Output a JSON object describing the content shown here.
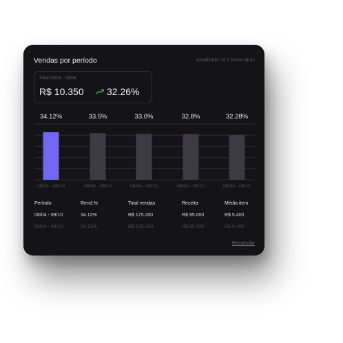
{
  "card": {
    "title": "Vendas por período",
    "updated": "Atualizado há 2 horas atrás"
  },
  "summary": {
    "range": "Total 09/04 - 09/04",
    "value": "R$ 10.350",
    "change": "32.26%",
    "trend_icon": "trend-up-icon",
    "trend_color": "#3fb950"
  },
  "chart_data": {
    "type": "bar",
    "categories": [
      "08/04 - 08/10",
      "08/04 - 08/10",
      "08/04 - 08/10",
      "08/04 - 08/10",
      "08/04 - 08/10"
    ],
    "values": [
      34.12,
      33.5,
      33.0,
      32.8,
      32.28
    ],
    "value_labels": [
      "34.12%",
      "33.5%",
      "33.0%",
      "32.8%",
      "32.28%"
    ],
    "highlight_index": 0,
    "colors": {
      "highlight": "#7068ef",
      "bar": "#3d3a43",
      "grid": "#2e2d34"
    },
    "grid": true,
    "ylim": [
      0,
      40
    ]
  },
  "table": {
    "headers": [
      "Período",
      "Rend.%",
      "Total vendas",
      "Receita",
      "Média item"
    ],
    "rows": [
      [
        "08/04 - 08/10",
        "34.12%",
        "R$ 175.200",
        "R$ 95.000",
        "R$ 5.400"
      ],
      [
        "08/04 - 08/10",
        "34.12%",
        "R$ 175.200",
        "R$ 95.000",
        "R$ 5.400"
      ]
    ]
  },
  "actions": {
    "recalc": "Recalcular"
  }
}
